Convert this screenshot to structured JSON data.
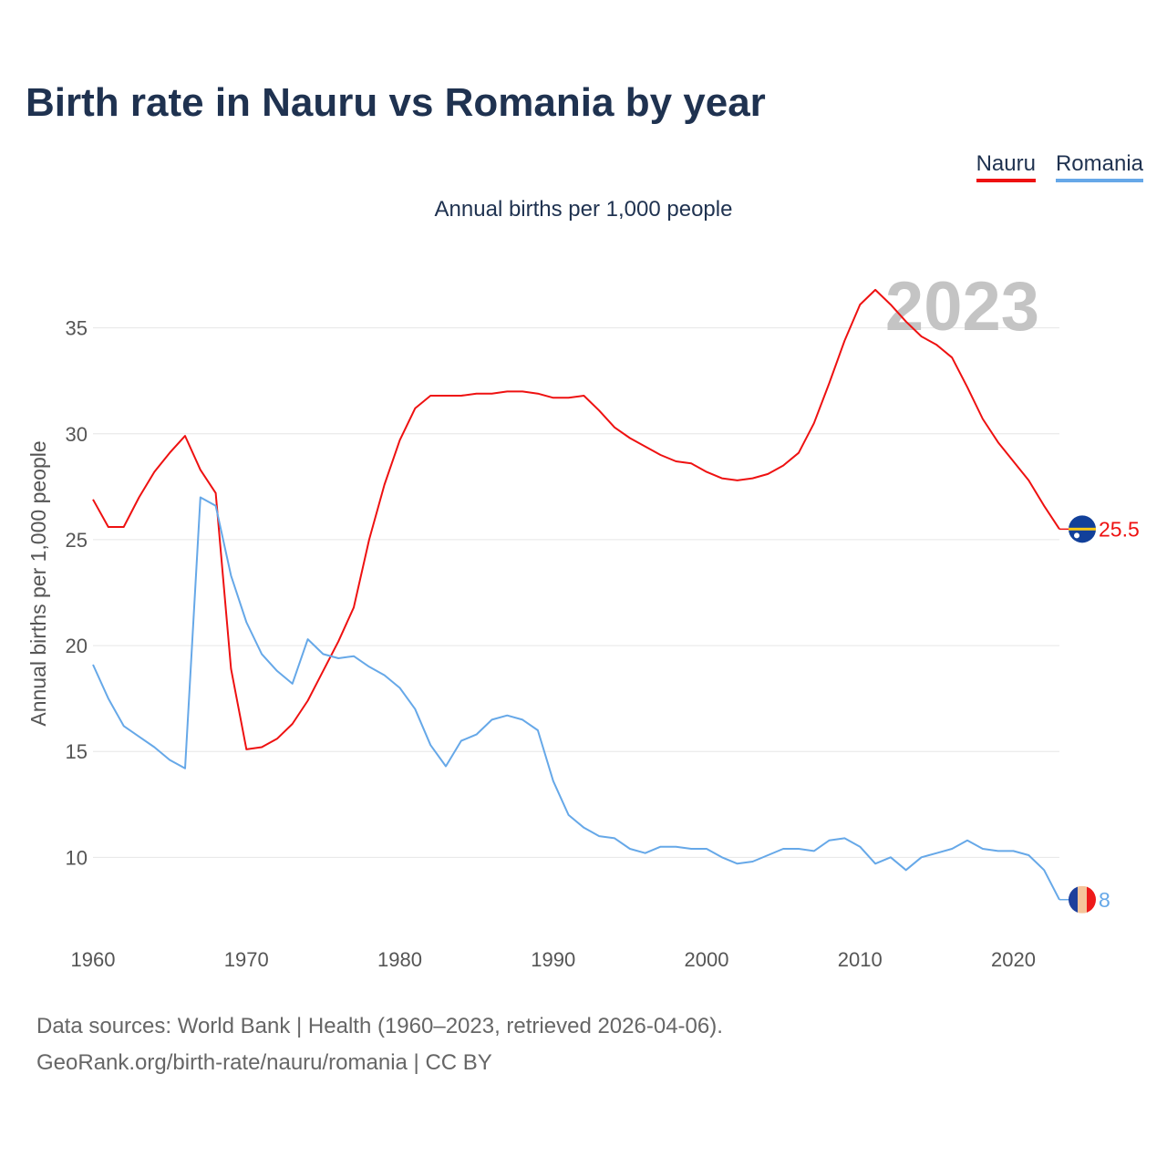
{
  "title": "Birth rate in Nauru vs Romania by year",
  "subtitle": "Annual births per 1,000 people",
  "legend": {
    "nauru": "Nauru",
    "romania": "Romania"
  },
  "footer": {
    "line1": "Data sources: World Bank | Health (1960–2023, retrieved 2026-04-06).",
    "line2": "GeoRank.org/birth-rate/nauru/romania | CC BY"
  },
  "chart_data": {
    "type": "line",
    "title": "Birth rate in Nauru vs Romania by year",
    "subtitle": "Annual births per 1,000 people",
    "xlabel": "",
    "ylabel": "Annual births per 1,000 people",
    "xlim": [
      1960,
      2023
    ],
    "ylim": [
      7,
      38
    ],
    "xticks": [
      1960,
      1970,
      1980,
      1990,
      2000,
      2010,
      2020
    ],
    "yticks": [
      10,
      15,
      20,
      25,
      30,
      35
    ],
    "grid": true,
    "legend_position": "top-right",
    "current_year_label": "2023",
    "x": [
      1960,
      1961,
      1962,
      1963,
      1964,
      1965,
      1966,
      1967,
      1968,
      1969,
      1970,
      1971,
      1972,
      1973,
      1974,
      1975,
      1976,
      1977,
      1978,
      1979,
      1980,
      1981,
      1982,
      1983,
      1984,
      1985,
      1986,
      1987,
      1988,
      1989,
      1990,
      1991,
      1992,
      1993,
      1994,
      1995,
      1996,
      1997,
      1998,
      1999,
      2000,
      2001,
      2002,
      2003,
      2004,
      2005,
      2006,
      2007,
      2008,
      2009,
      2010,
      2011,
      2012,
      2013,
      2014,
      2015,
      2016,
      2017,
      2018,
      2019,
      2020,
      2021,
      2022,
      2023
    ],
    "series": [
      {
        "name": "Nauru",
        "color": "#ee1111",
        "end_label": "25.5",
        "values": [
          26.9,
          25.6,
          25.6,
          27.0,
          28.2,
          29.1,
          29.9,
          28.3,
          27.2,
          18.9,
          15.1,
          15.2,
          15.6,
          16.3,
          17.4,
          18.8,
          20.2,
          21.8,
          25.0,
          27.6,
          29.7,
          31.2,
          31.8,
          31.8,
          31.8,
          31.9,
          31.9,
          32.0,
          32.0,
          31.9,
          31.7,
          31.7,
          31.8,
          31.1,
          30.3,
          29.8,
          29.4,
          29.0,
          28.7,
          28.6,
          28.2,
          27.9,
          27.8,
          27.9,
          28.1,
          28.5,
          29.1,
          30.5,
          32.4,
          34.4,
          36.1,
          36.8,
          36.1,
          35.3,
          34.6,
          34.2,
          33.6,
          32.2,
          30.7,
          29.6,
          28.7,
          27.8,
          26.6,
          25.5
        ]
      },
      {
        "name": "Romania",
        "color": "#66a8e8",
        "end_label": "8",
        "values": [
          19.1,
          17.5,
          16.2,
          15.7,
          15.2,
          14.6,
          14.2,
          27.0,
          26.6,
          23.3,
          21.1,
          19.6,
          18.8,
          18.2,
          20.3,
          19.6,
          19.4,
          19.5,
          19.0,
          18.6,
          18.0,
          17.0,
          15.3,
          14.3,
          15.5,
          15.8,
          16.5,
          16.7,
          16.5,
          16.0,
          13.6,
          12.0,
          11.4,
          11.0,
          10.9,
          10.4,
          10.2,
          10.5,
          10.5,
          10.4,
          10.4,
          10.0,
          9.7,
          9.8,
          10.1,
          10.4,
          10.4,
          10.3,
          10.8,
          10.9,
          10.5,
          9.7,
          10.0,
          9.4,
          10.0,
          10.2,
          10.4,
          10.8,
          10.4,
          10.3,
          10.3,
          10.1,
          9.4,
          8.0
        ]
      }
    ]
  }
}
